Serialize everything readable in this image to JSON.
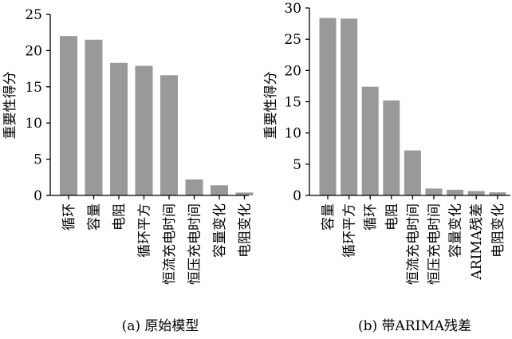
{
  "chart_data": [
    {
      "type": "bar",
      "caption": "(a)  原始模型",
      "ylabel": "重要性得分",
      "ylim": [
        0,
        25
      ],
      "yticks": [
        0,
        5,
        10,
        15,
        20,
        25
      ],
      "categories": [
        "循环",
        "容量",
        "电阻",
        "循环平方",
        "恒流充电时间",
        "恒压充电时间",
        "容量变化",
        "电阻变化"
      ],
      "values": [
        22.0,
        21.5,
        18.3,
        17.9,
        16.6,
        2.2,
        1.4,
        0.4
      ],
      "bar_color": "#999999"
    },
    {
      "type": "bar",
      "caption": "(b)  带ARIMA残差",
      "ylabel": "重要性得分",
      "ylim": [
        0,
        30
      ],
      "yticks": [
        0,
        5,
        10,
        15,
        20,
        25,
        30
      ],
      "categories": [
        "容量",
        "循环平方",
        "循环",
        "电阻",
        "恒流充电时间",
        "恒压充电时间",
        "容量变化",
        "ARIMA残差",
        "电阻变化"
      ],
      "values": [
        28.4,
        28.3,
        17.4,
        15.2,
        7.2,
        1.1,
        0.9,
        0.7,
        0.5
      ],
      "bar_color": "#999999"
    }
  ]
}
